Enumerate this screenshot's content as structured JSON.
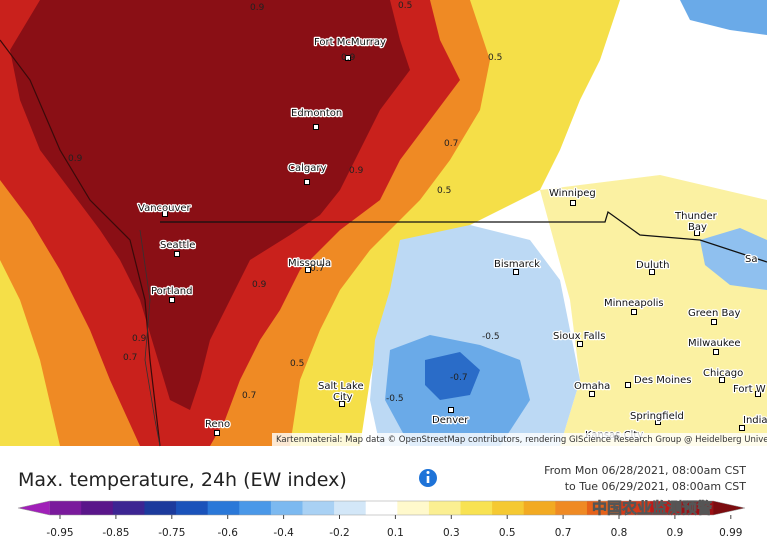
{
  "map": {
    "cities": [
      "Fort McMurray",
      "Edmonton",
      "Calgary",
      "Vancouver",
      "Seattle",
      "Portland",
      "Missoula",
      "Salt Lake",
      "City",
      "Reno",
      "Denver",
      "Winnipeg",
      "Bismarck",
      "Thunder",
      "Bay",
      "Duluth",
      "Minneapolis",
      "Green Bay",
      "Sioux Falls",
      "Milwaukee",
      "Omaha",
      "Des Moines",
      "Chicago",
      "Springfield",
      "Indianap",
      "Fort W",
      "Sa",
      "Kansas City"
    ],
    "contours": [
      "0.5",
      "0.9",
      "0.5",
      "0.9",
      "0.7",
      "0.9",
      "0.9",
      "0.5",
      "0.7",
      "0.9",
      "-0.5",
      "0.9",
      "0.7",
      "0.5",
      "-0.7",
      "0.7",
      "-0.5"
    ],
    "attribution": "Kartenmaterial: Map data © OpenStreetMap contributors, rendering GIScience Research Group @ Heidelberg University"
  },
  "header": {
    "title": "Max. temperature, 24h (EW index)",
    "from": "From Mon 06/28/2021, 08:00am CST",
    "to": "to Tue 06/29/2021, 08:00am CST",
    "watermark": "中国农业监测预警"
  },
  "legend": {
    "colors": [
      "#a020b8",
      "#7a1a9c",
      "#5a168a",
      "#3c2592",
      "#1c3a9c",
      "#1a52ba",
      "#2a78d8",
      "#4a98e8",
      "#7cb9f0",
      "#a9d1f4",
      "#d3e7f8",
      "#ffffff",
      "#fff9cc",
      "#fbef92",
      "#f8e252",
      "#f5c932",
      "#f2aa22",
      "#ef8a24",
      "#e6621a",
      "#d63a18",
      "#be1a18",
      "#9c1014",
      "#7c0c10"
    ],
    "ticks": [
      "-0.95",
      "-0.85",
      "-0.75",
      "-0.6",
      "-0.4",
      "-0.2",
      "0.1",
      "0.3",
      "0.5",
      "0.7",
      "0.8",
      "0.9",
      "0.99"
    ]
  }
}
